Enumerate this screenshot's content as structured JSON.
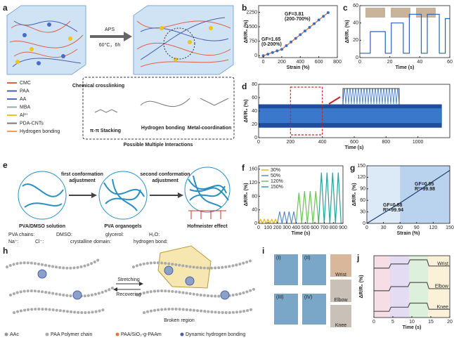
{
  "panels": {
    "a": {
      "label": "a",
      "legend": [
        "CMC",
        "PAA",
        "AA",
        "MBA",
        "Al³⁺",
        "PDA-CNTs",
        "Hydrogen bonding"
      ],
      "condition": [
        "APS",
        "60°C，6h"
      ],
      "interactions": [
        "Chemical crosslinking",
        "π-π Stacking",
        "Hydrogen bonding",
        "Metal-coordination"
      ],
      "caption": "Possible Multiple Interactions"
    },
    "e": {
      "label": "e",
      "steps": [
        [
          "first conformation",
          "adjustment"
        ],
        [
          "second conformation",
          "adjustment"
        ]
      ],
      "states": [
        "PVA/DMSO solution",
        "PVA organogels",
        "Hofmeister effect"
      ],
      "legend": [
        "PVA chains:",
        "DMSO:",
        "glycerol:",
        "H₂O:",
        "Na⁺:",
        "Cl⁻:",
        "crystalline domain:",
        "hydrogen bond:"
      ]
    },
    "h": {
      "label": "h",
      "actions": [
        "Stretching",
        "Recovering"
      ],
      "note": "Broken region",
      "legend": [
        "AAc",
        "PAA Polymer chain",
        "PAA/SiO₂-g-PAAm",
        "Dynamic hydrogen bonding"
      ]
    },
    "i": {
      "label": "i",
      "stages": [
        "(I)",
        "(II)",
        "(III)",
        "(IV)"
      ],
      "joints": [
        "Wrist",
        "Elbow",
        "Knee"
      ]
    }
  },
  "charts": [
    {
      "label": "b",
      "type": "scatter-line",
      "xlabel": "Strain (%)",
      "ylabel": "ΔR/R₀ (%)",
      "xlim": [
        -50,
        800
      ],
      "ylim": [
        -100,
        2600
      ],
      "xticks": [
        0,
        200,
        400,
        600,
        800
      ],
      "yticks": [
        0,
        750,
        1500,
        2250
      ],
      "series": [
        {
          "color": "#3a6fc4",
          "line_color": "#e0602a",
          "x": [
            0,
            50,
            100,
            150,
            200,
            250,
            300,
            350,
            400,
            450,
            500,
            550,
            600,
            650,
            700
          ],
          "values": [
            0,
            80,
            165,
            250,
            330,
            520,
            710,
            900,
            1090,
            1280,
            1470,
            1660,
            1855,
            2045,
            2235
          ]
        }
      ],
      "annotations": [
        "GF=1.65",
        "(0-200%)",
        "GF=3.81",
        "(200-700%)"
      ]
    },
    {
      "label": "c",
      "type": "line",
      "xlabel": "Time (s)",
      "ylabel": "ΔR/R₀ (%)",
      "xlim": [
        0,
        60
      ],
      "ylim": [
        0,
        60
      ],
      "xticks": [
        0,
        20,
        40,
        60
      ],
      "yticks": [
        0,
        20,
        40,
        60
      ],
      "series": [
        {
          "color": "#2a5fbf",
          "x": [
            0,
            7,
            7,
            17,
            17,
            21,
            21,
            29,
            29,
            33,
            33,
            41,
            41,
            45,
            45,
            53,
            53,
            57,
            57,
            60
          ],
          "values": [
            5,
            5,
            30,
            30,
            5,
            5,
            40,
            40,
            5,
            5,
            50,
            50,
            5,
            5,
            50,
            50,
            5,
            5,
            45,
            45
          ]
        }
      ]
    },
    {
      "label": "d",
      "type": "band",
      "xlabel": "Time (s)",
      "ylabel": "ΔR/R₀ (%)",
      "xlim": [
        0,
        1200
      ],
      "ylim": [
        0,
        80
      ],
      "xticks": [
        0,
        200,
        400,
        600,
        800,
        1000
      ],
      "yticks": [
        0,
        20,
        40,
        60,
        80
      ],
      "zoom_range": [
        200,
        400
      ],
      "series": [
        {
          "color": "#1f4e9c",
          "x": [
            0,
            1150
          ],
          "low": [
            15,
            15
          ],
          "high": [
            50,
            50
          ]
        },
        {
          "color": "#3a78cc",
          "x": [
            0,
            1150
          ],
          "low": [
            22,
            22
          ],
          "high": [
            44,
            44
          ]
        }
      ]
    },
    {
      "label": "f",
      "type": "line",
      "xlabel": "Time (s)",
      "ylabel": "ΔR/R₀ (%)",
      "xlim": [
        0,
        900
      ],
      "ylim": [
        0,
        170
      ],
      "xticks": [
        0,
        100,
        200,
        300,
        400,
        500,
        600,
        700,
        800,
        900
      ],
      "yticks": [
        0,
        40,
        80,
        120,
        160
      ],
      "series": [
        {
          "name": "30%",
          "color": "#e8b416",
          "x": [
            0,
            20,
            40,
            60,
            80,
            100,
            120,
            140,
            160,
            180,
            200
          ],
          "values": [
            0,
            12,
            0,
            12,
            0,
            12,
            0,
            12,
            0,
            12,
            0
          ]
        },
        {
          "name": "50%",
          "color": "#5b8cc8",
          "x": [
            200,
            225,
            250,
            275,
            300,
            325,
            350,
            375,
            400
          ],
          "values": [
            0,
            35,
            0,
            35,
            0,
            35,
            0,
            35,
            0
          ]
        },
        {
          "name": "120%",
          "color": "#6fbf5a",
          "x": [
            400,
            430,
            460,
            490,
            520,
            550,
            580,
            610,
            640
          ],
          "values": [
            0,
            90,
            0,
            95,
            0,
            95,
            0,
            95,
            0
          ]
        },
        {
          "name": "150%",
          "color": "#2aa198",
          "x": [
            640,
            670,
            700,
            730,
            760,
            790,
            820,
            850,
            880,
            900
          ],
          "values": [
            0,
            150,
            0,
            150,
            0,
            150,
            0,
            150,
            0,
            0
          ]
        }
      ]
    },
    {
      "label": "g",
      "type": "line",
      "xlabel": "Strain (%)",
      "ylabel": "ΔR/R₀ (%)",
      "xlim": [
        0,
        150
      ],
      "ylim": [
        0,
        150
      ],
      "xticks": [
        0,
        30,
        60,
        90,
        120,
        150
      ],
      "yticks": [
        0,
        30,
        60,
        90,
        120,
        150
      ],
      "regions": [
        [
          0,
          60
        ],
        [
          60,
          150
        ]
      ],
      "region_colors": [
        "#dce9f7",
        "#b9d3ef"
      ],
      "series": [
        {
          "color": "#1b3f7a",
          "x": [
            0,
            60,
            150
          ],
          "values": [
            0,
            53,
            138
          ]
        }
      ],
      "annotations": [
        "GF=0.88",
        "R²=99.94",
        "GF=0.95",
        "R²=99.98"
      ]
    },
    {
      "label": "j",
      "type": "line",
      "xlabel": "Time (s)",
      "ylabel": "ΔR/R₀ (%)",
      "xlim": [
        0,
        20
      ],
      "ylim": [
        0,
        30
      ],
      "xticks": [
        0,
        5,
        10,
        15,
        20
      ],
      "series": [
        {
          "name": "Wrist",
          "color": "#555",
          "x": [
            0,
            4,
            4.5,
            9,
            9.5,
            14,
            14.5,
            20
          ],
          "values": [
            24,
            24,
            26,
            26,
            28,
            28,
            25,
            25
          ]
        },
        {
          "name": "Elbow",
          "color": "#555",
          "x": [
            0,
            4,
            4.5,
            9,
            9.5,
            14,
            14.5,
            20
          ],
          "values": [
            13,
            13,
            15,
            15,
            17,
            17,
            14,
            14
          ]
        },
        {
          "name": "Knee",
          "color": "#555",
          "x": [
            0,
            4,
            4.5,
            9,
            9.5,
            14,
            14.5,
            20
          ],
          "values": [
            3,
            3,
            5,
            5,
            7,
            7,
            4,
            4
          ]
        }
      ]
    }
  ]
}
